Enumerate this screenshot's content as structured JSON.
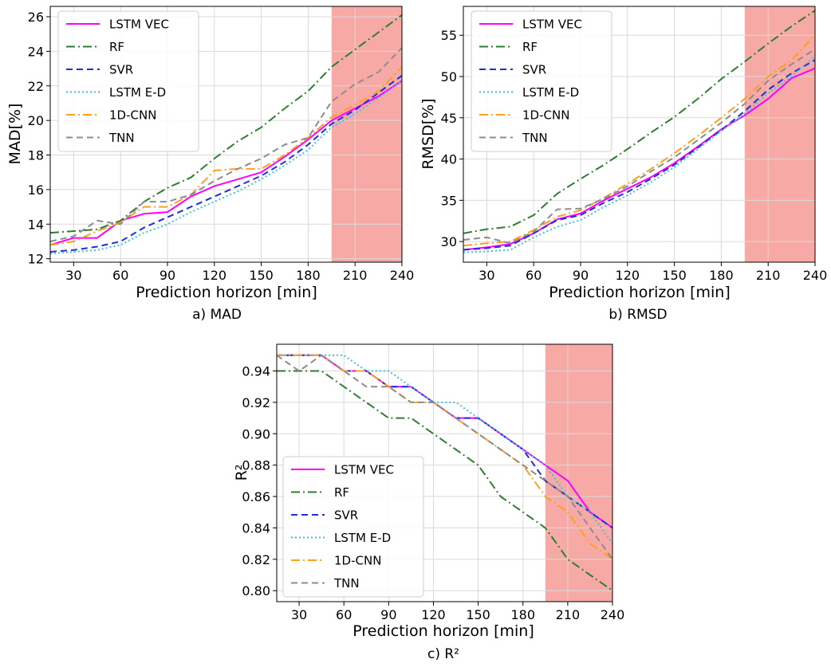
{
  "chart_data": [
    {
      "type": "line",
      "caption": "a) MAD",
      "xlabel": "Prediction horizon [min]",
      "ylabel": "MAD[%]",
      "xlim": [
        15,
        240
      ],
      "ylim": [
        11.8,
        26.6
      ],
      "xticks": [
        30,
        60,
        90,
        120,
        150,
        180,
        210,
        240
      ],
      "yticks": [
        12,
        14,
        16,
        18,
        20,
        22,
        24,
        26
      ],
      "ytick_labels": [
        "12",
        "14",
        "16",
        "18",
        "20",
        "22",
        "24",
        "26"
      ],
      "highlight_range": [
        195,
        240
      ],
      "grid": true,
      "legend_position": "upper-left",
      "x": [
        15,
        30,
        45,
        60,
        75,
        90,
        105,
        120,
        135,
        150,
        165,
        180,
        195,
        210,
        225,
        240
      ],
      "series": [
        {
          "name": "LSTM VEC",
          "values": [
            12.8,
            13.2,
            13.2,
            14.2,
            14.6,
            14.7,
            15.6,
            16.2,
            16.6,
            17.0,
            17.9,
            18.9,
            20.0,
            20.7,
            21.4,
            22.3
          ]
        },
        {
          "name": "RF",
          "values": [
            13.5,
            13.6,
            13.7,
            14.2,
            15.3,
            16.1,
            16.7,
            17.8,
            18.8,
            19.6,
            20.7,
            21.7,
            23.1,
            24.1,
            25.1,
            26.1
          ]
        },
        {
          "name": "SVR",
          "values": [
            12.4,
            12.5,
            12.7,
            13.0,
            13.8,
            14.4,
            15.0,
            15.6,
            16.2,
            16.8,
            17.6,
            18.6,
            19.8,
            20.6,
            21.6,
            22.6
          ]
        },
        {
          "name": "LSTM E-D",
          "values": [
            12.3,
            12.4,
            12.5,
            12.8,
            13.5,
            14.0,
            14.7,
            15.3,
            15.9,
            16.6,
            17.4,
            18.3,
            19.6,
            20.4,
            21.3,
            22.3
          ]
        },
        {
          "name": "1D-CNN",
          "values": [
            12.8,
            13.0,
            13.6,
            14.1,
            15.0,
            15.0,
            15.7,
            17.1,
            17.2,
            17.2,
            18.0,
            19.0,
            20.2,
            20.9,
            21.7,
            23.1
          ]
        },
        {
          "name": "TNN",
          "values": [
            13.0,
            13.3,
            14.2,
            14.0,
            15.3,
            15.3,
            15.7,
            16.5,
            17.2,
            17.8,
            18.6,
            19.0,
            21.1,
            22.1,
            22.8,
            24.2
          ]
        }
      ]
    },
    {
      "type": "line",
      "caption": "b) RMSD",
      "xlabel": "Prediction horizon [min]",
      "ylabel": "RMSD[%]",
      "xlim": [
        15,
        240
      ],
      "ylim": [
        27.5,
        58.5
      ],
      "xticks": [
        30,
        60,
        90,
        120,
        150,
        180,
        210,
        240
      ],
      "yticks": [
        30,
        35,
        40,
        45,
        50,
        55
      ],
      "ytick_labels": [
        "30",
        "35",
        "40",
        "45",
        "50",
        "55"
      ],
      "highlight_range": [
        195,
        240
      ],
      "grid": true,
      "legend_position": "upper-left",
      "x": [
        15,
        30,
        45,
        60,
        75,
        90,
        105,
        120,
        135,
        150,
        165,
        180,
        195,
        210,
        225,
        240
      ],
      "series": [
        {
          "name": "LSTM VEC",
          "values": [
            29.0,
            29.3,
            29.7,
            31.0,
            32.7,
            33.4,
            35.0,
            36.4,
            37.8,
            39.5,
            41.5,
            43.6,
            45.3,
            47.3,
            49.8,
            51.0
          ]
        },
        {
          "name": "RF",
          "values": [
            31.0,
            31.5,
            31.8,
            33.2,
            35.8,
            37.6,
            39.3,
            41.2,
            43.2,
            45.1,
            47.3,
            49.7,
            51.8,
            54.0,
            56.1,
            58.0
          ]
        },
        {
          "name": "SVR",
          "values": [
            29.0,
            29.2,
            29.5,
            31.0,
            32.6,
            33.2,
            34.7,
            36.0,
            37.6,
            39.3,
            41.4,
            43.5,
            45.8,
            48.4,
            50.4,
            52.0
          ]
        },
        {
          "name": "LSTM E-D",
          "values": [
            28.7,
            28.8,
            29.0,
            30.5,
            31.8,
            32.6,
            34.2,
            35.6,
            37.2,
            39.0,
            41.2,
            43.4,
            45.5,
            48.0,
            50.0,
            52.5
          ]
        },
        {
          "name": "1D-CNN",
          "values": [
            29.5,
            29.8,
            30.0,
            31.4,
            33.0,
            33.8,
            35.3,
            37.0,
            38.8,
            40.7,
            42.8,
            45.0,
            47.3,
            50.0,
            52.0,
            55.0
          ]
        },
        {
          "name": "TNN",
          "values": [
            30.2,
            30.5,
            29.8,
            31.2,
            33.9,
            34.0,
            35.2,
            36.7,
            38.5,
            40.2,
            42.3,
            44.4,
            46.7,
            49.5,
            51.5,
            53.3
          ]
        }
      ]
    },
    {
      "type": "line",
      "caption": "c) R²",
      "xlabel": "Prediction horizon [min]",
      "ylabel": "R²",
      "xlim": [
        15,
        240
      ],
      "ylim": [
        0.793,
        0.957
      ],
      "xticks": [
        30,
        60,
        90,
        120,
        150,
        180,
        210,
        240
      ],
      "yticks": [
        0.8,
        0.82,
        0.84,
        0.86,
        0.88,
        0.9,
        0.92,
        0.94
      ],
      "ytick_labels": [
        "0.80",
        "0.82",
        "0.84",
        "0.86",
        "0.88",
        "0.90",
        "0.92",
        "0.94"
      ],
      "highlight_range": [
        195,
        240
      ],
      "grid": true,
      "legend_position": "lower-left",
      "x": [
        15,
        30,
        45,
        60,
        75,
        90,
        105,
        120,
        135,
        150,
        165,
        180,
        195,
        210,
        225,
        240
      ],
      "series": [
        {
          "name": "LSTM VEC",
          "values": [
            0.95,
            0.95,
            0.95,
            0.94,
            0.94,
            0.93,
            0.93,
            0.92,
            0.91,
            0.91,
            0.9,
            0.89,
            0.88,
            0.87,
            0.85,
            0.84
          ]
        },
        {
          "name": "RF",
          "values": [
            0.94,
            0.94,
            0.94,
            0.93,
            0.92,
            0.91,
            0.91,
            0.9,
            0.89,
            0.88,
            0.86,
            0.85,
            0.84,
            0.82,
            0.81,
            0.8
          ]
        },
        {
          "name": "SVR",
          "values": [
            0.95,
            0.95,
            0.95,
            0.94,
            0.94,
            0.93,
            0.93,
            0.92,
            0.91,
            0.91,
            0.9,
            0.89,
            0.87,
            0.86,
            0.85,
            0.84
          ]
        },
        {
          "name": "LSTM E-D",
          "values": [
            0.95,
            0.95,
            0.95,
            0.95,
            0.94,
            0.94,
            0.93,
            0.92,
            0.92,
            0.91,
            0.9,
            0.89,
            0.88,
            0.86,
            0.85,
            0.83
          ]
        },
        {
          "name": "1D-CNN",
          "values": [
            0.95,
            0.95,
            0.95,
            0.94,
            0.94,
            0.93,
            0.92,
            0.92,
            0.91,
            0.9,
            0.89,
            0.88,
            0.86,
            0.85,
            0.83,
            0.82
          ]
        },
        {
          "name": "TNN",
          "values": [
            0.95,
            0.94,
            0.95,
            0.94,
            0.93,
            0.93,
            0.92,
            0.92,
            0.91,
            0.9,
            0.89,
            0.88,
            0.87,
            0.86,
            0.84,
            0.82
          ]
        }
      ]
    }
  ],
  "series_styles": [
    {
      "color": "#ff00ff",
      "dash": ""
    },
    {
      "color": "#2e7d32",
      "dash": "11 4 2 4"
    },
    {
      "color": "#1f2fd6",
      "dash": "8 5"
    },
    {
      "color": "#3fc0e0",
      "dash": "2 3"
    },
    {
      "color": "#ff9f1c",
      "dash": "11 4 2 4"
    },
    {
      "color": "#8c8c8c",
      "dash": "8 5"
    }
  ],
  "highlight_color": "#f7a5a0"
}
